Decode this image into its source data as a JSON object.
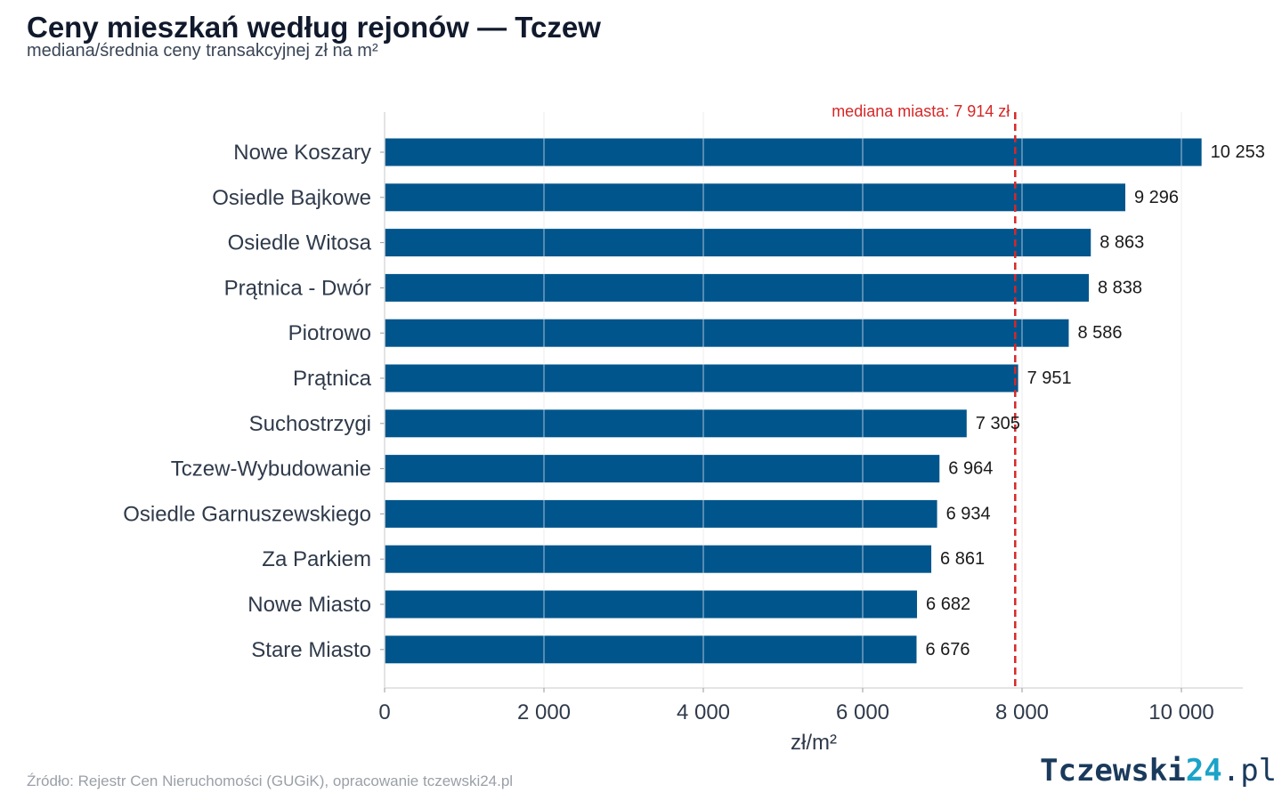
{
  "header": {
    "title": "Ceny mieszkań według rejonów — Tczew",
    "subtitle": "mediana/średnia ceny transakcyjnej zł na m²"
  },
  "footer": {
    "source": "Źródło: Rejestr Cen Nieruchomości (GUGiK), opracowanie tczewski24.pl",
    "logo_part1": "Tczewski",
    "logo_part2": "24",
    "logo_part3": ".pl"
  },
  "chart_data": {
    "type": "bar",
    "orientation": "horizontal",
    "categories": [
      "Nowe Koszary",
      "Osiedle Bajkowe",
      "Osiedle Witosa",
      "Prątnica - Dwór",
      "Piotrowo",
      "Prątnica",
      "Suchostrzygi",
      "Tczew-Wybudowanie",
      "Osiedle Garnuszewskiego",
      "Za Parkiem",
      "Nowe Miasto",
      "Stare Miasto"
    ],
    "values": [
      10253,
      9296,
      8863,
      8838,
      8586,
      7951,
      7305,
      6964,
      6934,
      6861,
      6682,
      6676
    ],
    "value_labels": [
      "10 253",
      "9 296",
      "8 863",
      "8 838",
      "8 586",
      "7 951",
      "7 305",
      "6 964",
      "6 934",
      "6 861",
      "6 682",
      "6 676"
    ],
    "xlabel": "zł/m²",
    "xlim": [
      0,
      10800
    ],
    "xticks": [
      0,
      2000,
      4000,
      6000,
      8000,
      10000
    ],
    "xtick_labels": [
      "0",
      "2 000",
      "4 000",
      "6 000",
      "8 000",
      "10 000"
    ],
    "grid": "vertical",
    "bar_color": "#00558c",
    "reference_line": {
      "value": 7914,
      "label": "mediana miasta: 7 914 zł",
      "color": "#d62728",
      "style": "dashed"
    }
  }
}
